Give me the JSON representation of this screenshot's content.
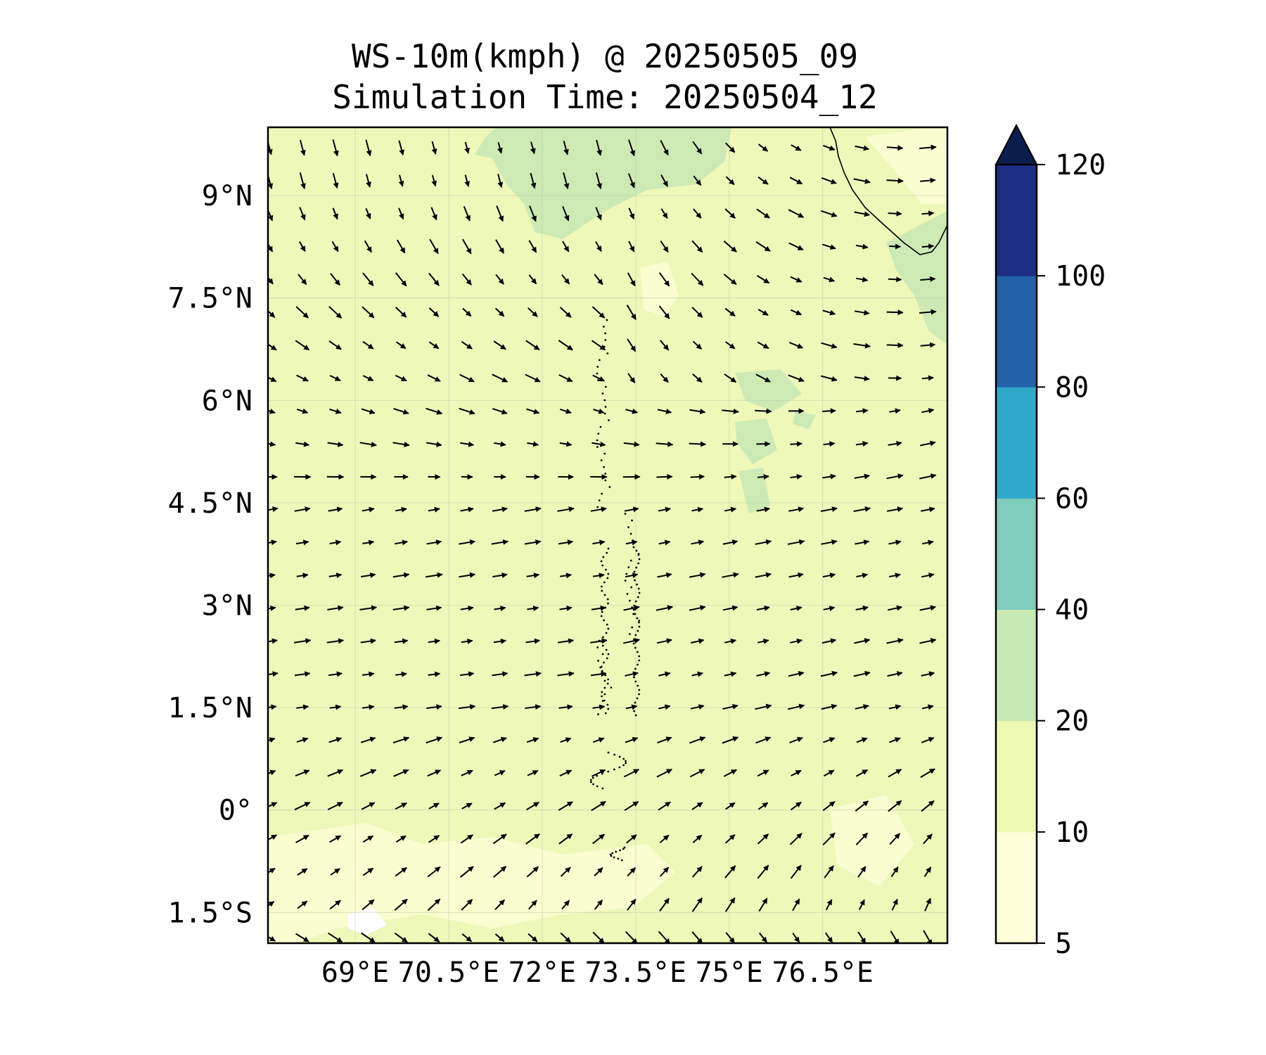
{
  "title": {
    "line1": "WS-10m(kmph) @ 20250505_09",
    "line2": "Simulation Time: 20250504_12"
  },
  "map": {
    "lon_range": [
      67.6,
      78.5
    ],
    "lat_range": [
      -1.95,
      10.0
    ],
    "x_ticks": [
      {
        "value": 69,
        "label": "69°E"
      },
      {
        "value": 70.5,
        "label": "70.5°E"
      },
      {
        "value": 72,
        "label": "72°E"
      },
      {
        "value": 73.5,
        "label": "73.5°E"
      },
      {
        "value": 75,
        "label": "75°E"
      },
      {
        "value": 76.5,
        "label": "76.5°E"
      }
    ],
    "y_ticks": [
      {
        "value": 9,
        "label": "9°N"
      },
      {
        "value": 7.5,
        "label": "7.5°N"
      },
      {
        "value": 6,
        "label": "6°N"
      },
      {
        "value": 4.5,
        "label": "4.5°N"
      },
      {
        "value": 3,
        "label": "3°N"
      },
      {
        "value": 1.5,
        "label": "1.5°N"
      },
      {
        "value": 0,
        "label": "0°"
      },
      {
        "value": -1.5,
        "label": "1.5°S"
      }
    ],
    "gridlines": true,
    "background_color": "#edf8b9",
    "light_color": "#fafdd0",
    "moderate_color": "#cdeab4"
  },
  "colorbar": {
    "levels": [
      5,
      10,
      20,
      40,
      60,
      80,
      100,
      120
    ],
    "labels": [
      "5",
      "10",
      "20",
      "40",
      "60",
      "80",
      "100",
      "120"
    ],
    "colors": [
      "#ffffd9",
      "#edf8b1",
      "#c7e9b4",
      "#7fcdbb",
      "#2ea7c9",
      "#2262a8",
      "#1d2e83"
    ],
    "extend_color": "#0b1d4d",
    "extend": "max"
  }
}
